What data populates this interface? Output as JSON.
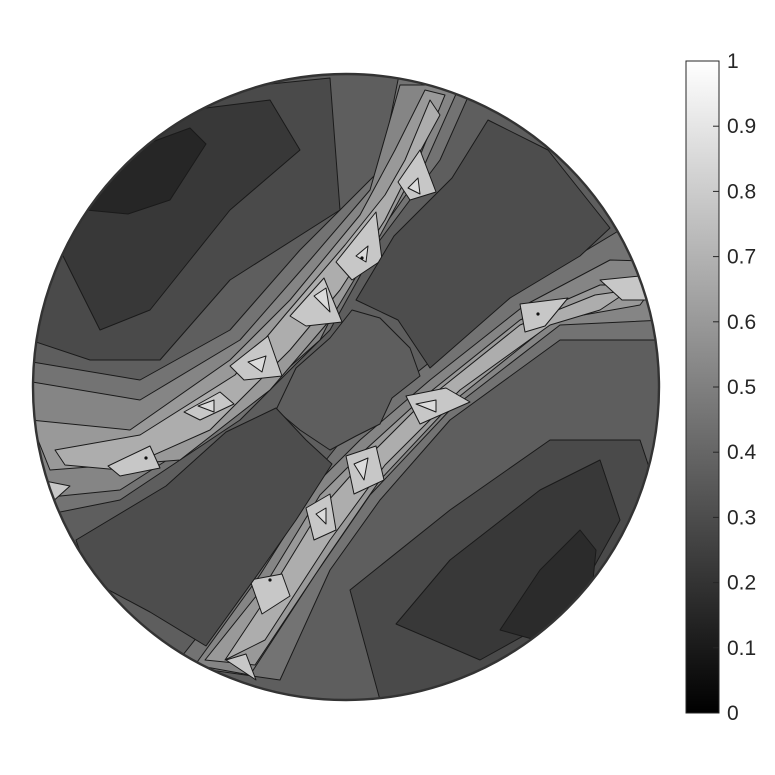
{
  "chart_data": {
    "type": "heatmap",
    "title": "",
    "xlabel": "",
    "ylabel": "",
    "plot_shape": "circle",
    "colormap": "gray",
    "contour_lines": true,
    "colorbar": {
      "placement": "right",
      "range": [
        0,
        1
      ],
      "ticks": [
        {
          "value": 0,
          "label": "0"
        },
        {
          "value": 0.1,
          "label": "0.1"
        },
        {
          "value": 0.2,
          "label": "0.2"
        },
        {
          "value": 0.3,
          "label": "0.3"
        },
        {
          "value": 0.4,
          "label": "0.4"
        },
        {
          "value": 0.5,
          "label": "0.5"
        },
        {
          "value": 0.6,
          "label": "0.6"
        },
        {
          "value": 0.7,
          "label": "0.7"
        },
        {
          "value": 0.8,
          "label": "0.8"
        },
        {
          "value": 0.9,
          "label": "0.9"
        },
        {
          "value": 1,
          "label": "1"
        }
      ]
    },
    "contour_levels": [
      0.1,
      0.2,
      0.3,
      0.4,
      0.5,
      0.6,
      0.7,
      0.8
    ],
    "bands": [
      {
        "name": "background",
        "value": 0.37
      },
      {
        "name": "outer-band",
        "value": 0.45
      },
      {
        "name": "mid-band",
        "value": 0.52
      },
      {
        "name": "inner-band",
        "value": 0.6
      },
      {
        "name": "ridge",
        "value": 0.68
      },
      {
        "name": "peak",
        "value": 0.78
      },
      {
        "name": "hotspot",
        "value": 0.86
      }
    ],
    "regions": [
      {
        "name": "center-plateau",
        "value": 0.37
      },
      {
        "name": "upper-right-basin",
        "value": 0.3
      },
      {
        "name": "lower-left-basin",
        "value": 0.3
      },
      {
        "name": "upper-left-valley",
        "value": 0.29
      },
      {
        "name": "upper-left-deep",
        "value": 0.22
      },
      {
        "name": "upper-left-min",
        "value": 0.15
      },
      {
        "name": "lower-right-valley",
        "value": 0.29
      },
      {
        "name": "lower-right-deep",
        "value": 0.22
      },
      {
        "name": "lower-right-min",
        "value": 0.17
      }
    ]
  }
}
